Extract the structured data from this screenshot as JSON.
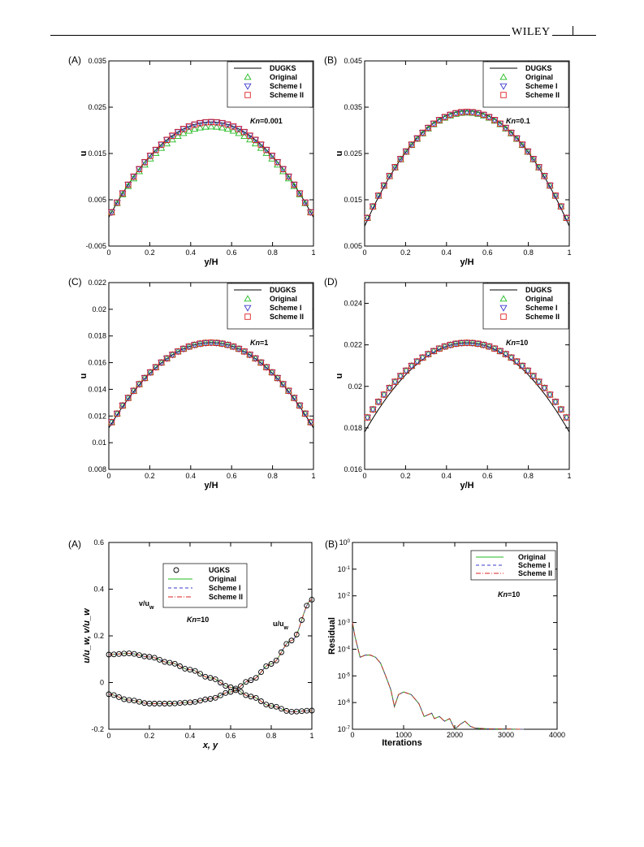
{
  "header": {
    "publisher": "WILEY"
  },
  "figure1": {
    "legend": [
      "DUGKS",
      "Original",
      "Scheme I",
      "Scheme II"
    ],
    "colors": {
      "DUGKS": "#000000",
      "Original": "#22bb22",
      "Scheme I": "#3a3acc",
      "Scheme II": "#dd2222"
    },
    "xlabel": "y/H",
    "ylabel": "u",
    "panels": [
      {
        "label": "(A)",
        "kn_prefix": "Kn",
        "kn_value": "=0.001",
        "yticks": [
          "-0.005",
          "0.005",
          "0.015",
          "0.025",
          "0.035"
        ]
      },
      {
        "label": "(B)",
        "kn_prefix": "Kn",
        "kn_value": "=0.1",
        "yticks": [
          "0.005",
          "0.015",
          "0.025",
          "0.035",
          "0.045"
        ]
      },
      {
        "label": "(C)",
        "kn_prefix": "Kn",
        "kn_value": "=1",
        "yticks": [
          "0.008",
          "0.01",
          "0.012",
          "0.014",
          "0.016",
          "0.018",
          "0.02",
          "0.022"
        ]
      },
      {
        "label": "(D)",
        "kn_prefix": "Kn",
        "kn_value": "=10",
        "yticks": [
          "0.016",
          "0.018",
          "0.02",
          "0.022",
          "0.024"
        ]
      }
    ],
    "xticks": [
      "0",
      "0.2",
      "0.4",
      "0.6",
      "0.8",
      "1"
    ]
  },
  "figure2": {
    "panelA": {
      "label": "(A)",
      "legend": [
        "UGKS",
        "Original",
        "Scheme I",
        "Scheme II"
      ],
      "kn_prefix": "Kn",
      "kn_value": "=10",
      "xlabel": "x, y",
      "ylabel": "u/u_w, v/u_w",
      "curve_label_v": "v/u_w",
      "curve_label_u": "u/u_w",
      "yticks": [
        "-0.2",
        "0",
        "0.2",
        "0.4",
        "0.6"
      ],
      "xticks": [
        "0",
        "0.2",
        "0.4",
        "0.6",
        "0.8",
        "1"
      ]
    },
    "panelB": {
      "label": "(B)",
      "legend": [
        "Original",
        "Scheme I",
        "Scheme II"
      ],
      "kn_prefix": "Kn",
      "kn_value": "=10",
      "xlabel": "Iterations",
      "ylabel": "Residual",
      "ytick_exponents": [
        "0",
        "-1",
        "-2",
        "-3",
        "-4",
        "-5",
        "-6",
        "-7"
      ],
      "ytick_base": "10",
      "xticks": [
        "0",
        "1000",
        "2000",
        "3000",
        "4000"
      ]
    }
  },
  "chart_data": [
    {
      "type": "line",
      "title": "(A)",
      "xlabel": "y/H",
      "ylabel": "u",
      "xlim": [
        0,
        1
      ],
      "ylim": [
        -0.005,
        0.035
      ],
      "annotation": "Kn=0.001",
      "legend_position": "top-right",
      "series": [
        {
          "name": "DUGKS",
          "model": "parabola",
          "wall": 0.0012,
          "center": 0.0218
        },
        {
          "name": "Original",
          "model": "parabola",
          "wall": 0.0012,
          "center": 0.0208
        },
        {
          "name": "Scheme I",
          "model": "parabola",
          "wall": 0.0012,
          "center": 0.0218
        },
        {
          "name": "Scheme II",
          "model": "parabola",
          "wall": 0.0012,
          "center": 0.0218
        }
      ]
    },
    {
      "type": "line",
      "title": "(B)",
      "xlabel": "y/H",
      "ylabel": "u",
      "xlim": [
        0,
        1
      ],
      "ylim": [
        0.005,
        0.045
      ],
      "annotation": "Kn=0.1",
      "legend_position": "top-right",
      "series": [
        {
          "name": "DUGKS",
          "model": "parabola",
          "wall": 0.0093,
          "center": 0.0342
        },
        {
          "name": "Original",
          "model": "parabola",
          "wall": 0.0098,
          "center": 0.0338
        },
        {
          "name": "Scheme I",
          "model": "parabola",
          "wall": 0.0098,
          "center": 0.034
        },
        {
          "name": "Scheme II",
          "model": "parabola",
          "wall": 0.0098,
          "center": 0.034
        }
      ]
    },
    {
      "type": "line",
      "title": "(C)",
      "xlabel": "y/H",
      "ylabel": "u",
      "xlim": [
        0,
        1
      ],
      "ylim": [
        0.008,
        0.022
      ],
      "annotation": "Kn=1",
      "legend_position": "top-right",
      "series": [
        {
          "name": "DUGKS",
          "model": "parabola",
          "wall": 0.0111,
          "center": 0.0175
        },
        {
          "name": "Original",
          "model": "parabola",
          "wall": 0.0112,
          "center": 0.0175
        },
        {
          "name": "Scheme I",
          "model": "parabola",
          "wall": 0.0112,
          "center": 0.0175
        },
        {
          "name": "Scheme II",
          "model": "parabola",
          "wall": 0.0112,
          "center": 0.0175
        }
      ]
    },
    {
      "type": "line",
      "title": "(D)",
      "xlabel": "y/H",
      "ylabel": "u",
      "xlim": [
        0,
        1
      ],
      "ylim": [
        0.016,
        0.025
      ],
      "annotation": "Kn=10",
      "legend_position": "top-right",
      "series": [
        {
          "name": "DUGKS",
          "model": "parabola",
          "wall": 0.0178,
          "center": 0.0221
        },
        {
          "name": "Original",
          "model": "parabola",
          "wall": 0.0183,
          "center": 0.0221
        },
        {
          "name": "Scheme I",
          "model": "parabola",
          "wall": 0.0183,
          "center": 0.0221
        },
        {
          "name": "Scheme II",
          "model": "parabola",
          "wall": 0.0183,
          "center": 0.0221
        }
      ]
    },
    {
      "type": "line",
      "title": "(A)",
      "xlabel": "x, y",
      "ylabel": "u/u_w, v/u_w",
      "xlim": [
        0,
        1
      ],
      "ylim": [
        -0.2,
        0.6
      ],
      "annotation": "Kn=10",
      "legend_position": "top-center",
      "x": [
        0,
        0.1,
        0.2,
        0.3,
        0.4,
        0.5,
        0.6,
        0.7,
        0.8,
        0.9,
        1.0
      ],
      "series": [
        {
          "name": "v/u_w",
          "values": [
            0.12,
            0.125,
            0.11,
            0.085,
            0.055,
            0.02,
            -0.02,
            -0.06,
            -0.1,
            -0.125,
            -0.12
          ]
        },
        {
          "name": "u/u_w",
          "values": [
            -0.05,
            -0.075,
            -0.09,
            -0.09,
            -0.085,
            -0.07,
            -0.04,
            0.01,
            0.08,
            0.18,
            0.355
          ]
        }
      ]
    },
    {
      "type": "line",
      "title": "(B)",
      "xlabel": "Iterations",
      "ylabel": "Residual",
      "xlim": [
        0,
        4000
      ],
      "ylim": [
        1e-07,
        1
      ],
      "yscale": "log",
      "annotation": "Kn=10",
      "legend_position": "top-right",
      "x": [
        0,
        50,
        150,
        250,
        350,
        450,
        550,
        650,
        750,
        820,
        900,
        1000,
        1150,
        1300,
        1400,
        1550,
        1600,
        1700,
        1800,
        1900,
        2000,
        2100,
        2200,
        2300,
        2400,
        2600,
        2800,
        3000,
        3200,
        3350
      ],
      "series": [
        {
          "name": "Original",
          "values": [
            0.001,
            0.0003,
            5e-05,
            6e-05,
            6e-05,
            5e-05,
            3e-05,
            1e-05,
            3e-06,
            7e-07,
            2e-06,
            2.5e-06,
            2e-06,
            9e-07,
            3e-07,
            4e-07,
            2.5e-07,
            3e-07,
            2e-07,
            2.5e-07,
            1e-07,
            1.5e-07,
            2e-07,
            1.3e-07,
            1.1e-07,
            1.05e-07,
            1.03e-07,
            1.02e-07,
            1.01e-07,
            1e-07
          ]
        }
      ]
    }
  ]
}
